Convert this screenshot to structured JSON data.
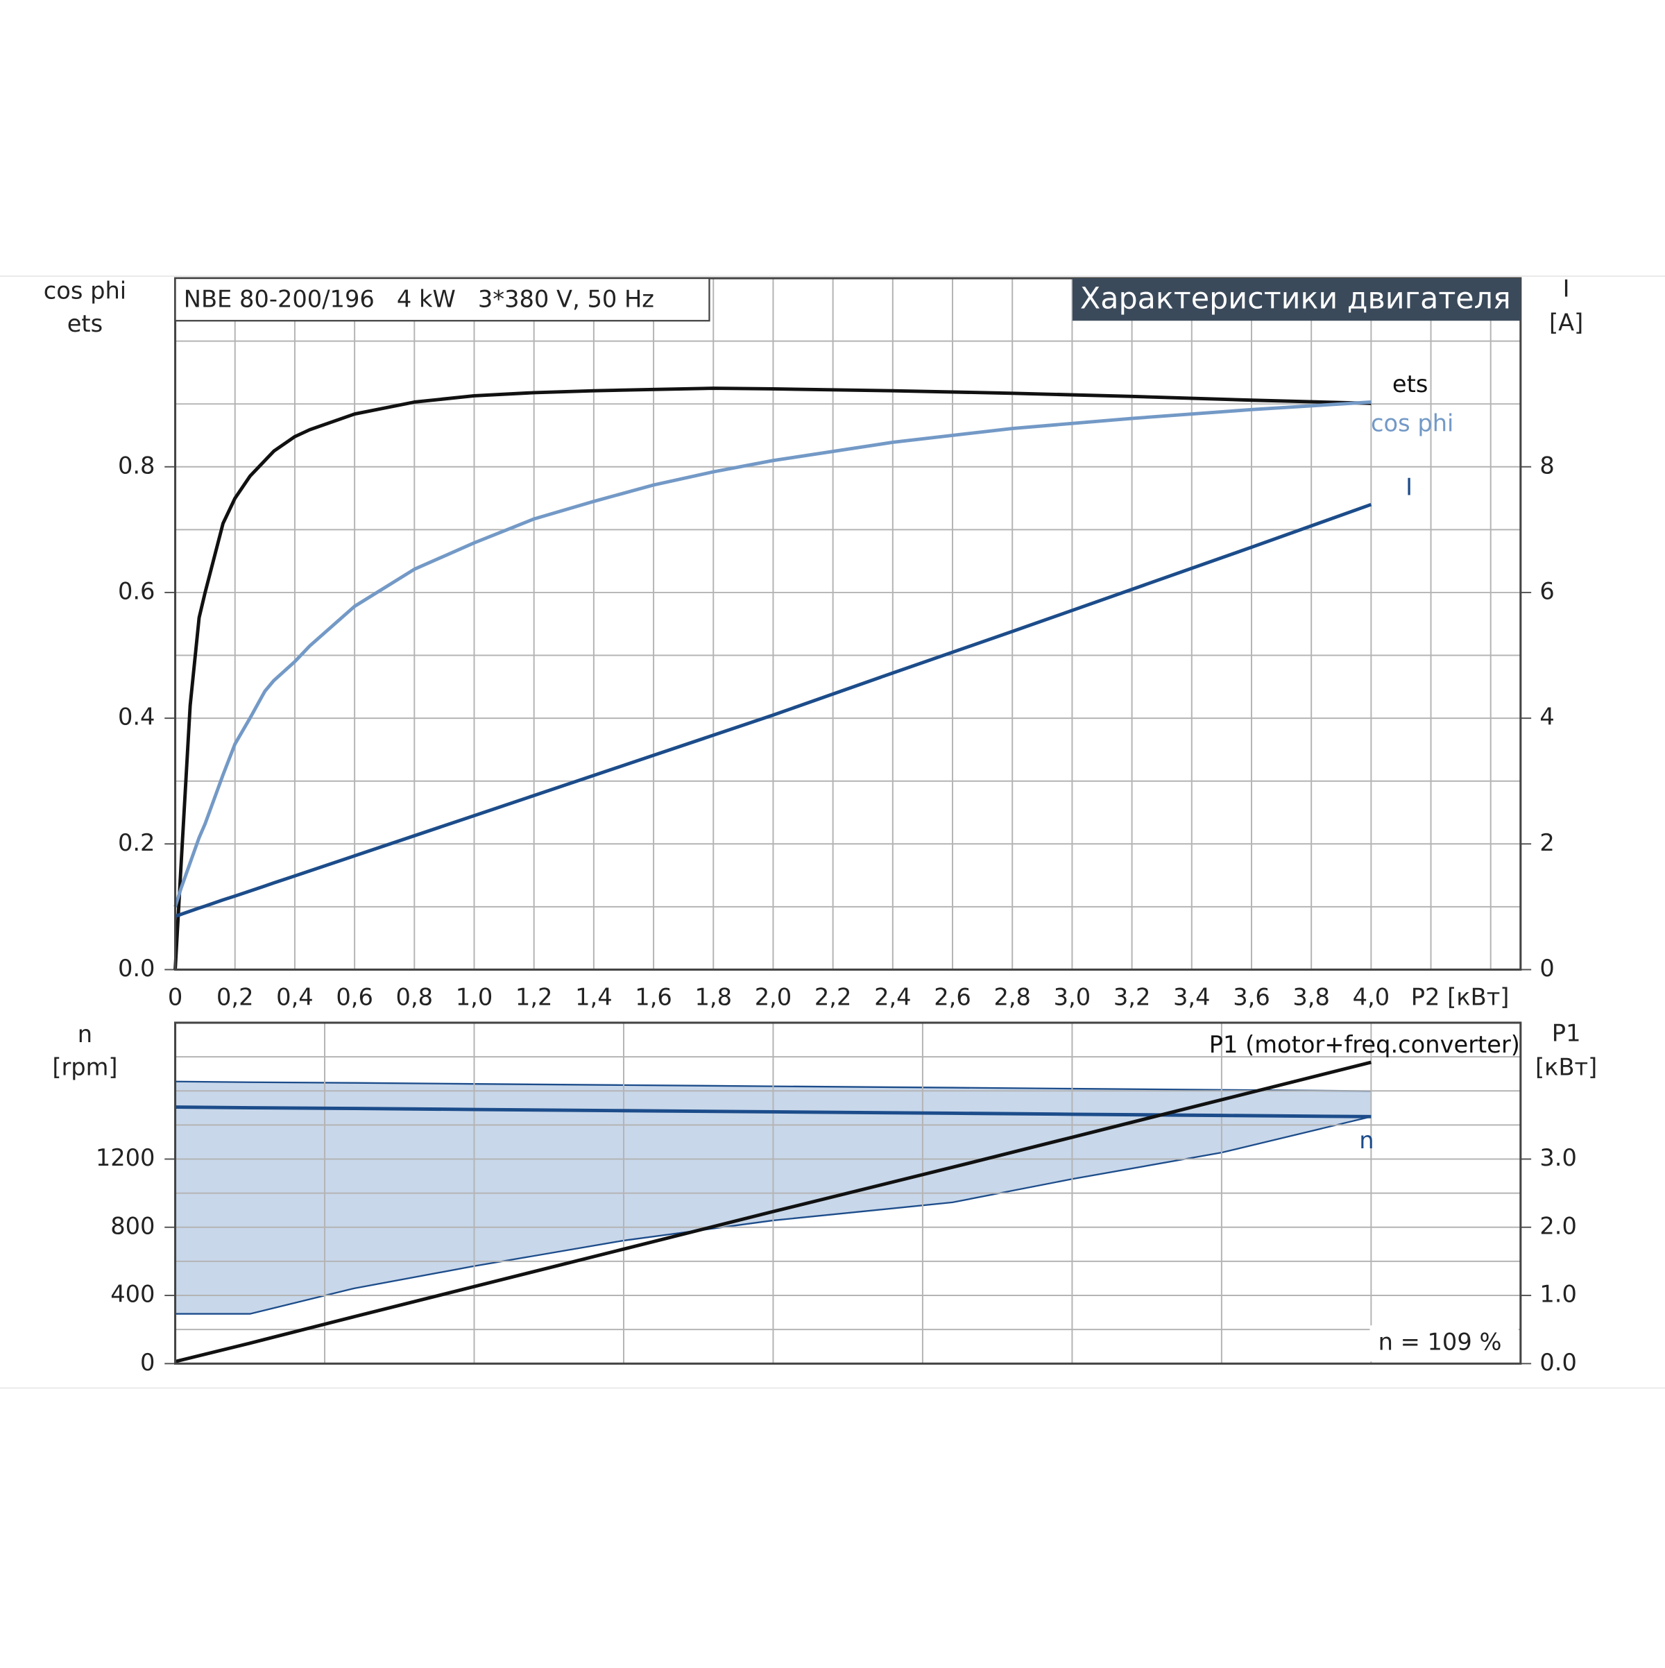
{
  "chart_data": [
    {
      "type": "line",
      "info": "NBE 80-200/196   4 kW   3*380 V, 50 Hz",
      "title": "Характеристики двигателя",
      "ylabel": [
        "cos phi",
        "ets"
      ],
      "y2label": [
        "I",
        "[A]"
      ],
      "xlabel": "P2 [кВт]",
      "xlim": [
        0,
        4.5
      ],
      "xticks": [
        0,
        {
          "value": 0.2,
          "label": "0,2"
        },
        {
          "value": 0.4,
          "label": "0,4"
        },
        {
          "value": 0.6,
          "label": "0,6"
        },
        {
          "value": 0.8,
          "label": "0,8"
        },
        {
          "value": 1.0,
          "label": "1,0"
        },
        {
          "value": 1.2,
          "label": "1,2"
        },
        {
          "value": 1.4,
          "label": "1,4"
        },
        {
          "value": 1.6,
          "label": "1,6"
        },
        {
          "value": 1.8,
          "label": "1,8"
        },
        {
          "value": 2.0,
          "label": "2,0"
        },
        {
          "value": 2.2,
          "label": "2,2"
        },
        {
          "value": 2.4,
          "label": "2,4"
        },
        {
          "value": 2.6,
          "label": "2,6"
        },
        {
          "value": 2.8,
          "label": "2,8"
        },
        {
          "value": 3.0,
          "label": "3,0"
        },
        {
          "value": 3.2,
          "label": "3,2"
        },
        {
          "value": 3.4,
          "label": "3,4"
        },
        {
          "value": 3.6,
          "label": "3,6"
        },
        {
          "value": 3.8,
          "label": "3,8"
        },
        {
          "value": 4.0,
          "label": "4,0"
        }
      ],
      "xgrid": [
        4.2,
        4.4
      ],
      "ylim": [
        0,
        1.1
      ],
      "yticks": [
        {
          "value": 0,
          "label": "0.0"
        },
        0.2,
        0.4,
        0.6,
        0.8
      ],
      "ygrid": [
        0.1,
        0.3,
        0.5,
        0.7,
        0.9,
        1.0
      ],
      "y2lim": [
        0,
        11
      ],
      "y2ticks": [
        0,
        2,
        4,
        6,
        8
      ],
      "grid": true,
      "x": [
        0,
        0.02,
        0.05,
        0.08,
        0.1,
        0.16,
        0.2,
        0.25,
        0.3,
        0.33,
        0.4,
        0.45,
        0.6,
        0.8,
        1.0,
        1.2,
        1.4,
        1.6,
        1.8,
        2.0,
        2.4,
        2.8,
        3.2,
        3.6,
        4.0
      ],
      "series": [
        {
          "name": "ets",
          "color": "#111111",
          "values": [
            0,
            0.17,
            0.42,
            0.56,
            0.6,
            0.71,
            0.75,
            0.785,
            0.81,
            0.825,
            0.848,
            0.859,
            0.884,
            0.903,
            0.913,
            0.918,
            0.921,
            0.923,
            0.925,
            0.924,
            0.921,
            0.917,
            0.912,
            0.906,
            0.901
          ]
        },
        {
          "name": "cos phi",
          "color": "#7399c6",
          "values": [
            0.1,
            0.13,
            0.17,
            0.21,
            0.232,
            0.31,
            0.359,
            0.4,
            0.443,
            0.46,
            0.49,
            0.515,
            0.578,
            0.637,
            0.679,
            0.717,
            0.745,
            0.771,
            0.792,
            0.81,
            0.839,
            0.861,
            0.877,
            0.891,
            0.903
          ]
        },
        {
          "name": "I",
          "color": "#1c4c8a",
          "axis": "y2",
          "values": [
            0.85,
            0.88,
            0.93,
            0.98,
            1.01,
            1.11,
            1.17,
            1.25,
            1.33,
            1.38,
            1.49,
            1.57,
            1.81,
            2.13,
            2.45,
            2.77,
            3.09,
            3.41,
            3.73,
            4.05,
            4.72,
            5.38,
            6.05,
            6.72,
            7.4
          ]
        }
      ]
    },
    {
      "type": "line",
      "ylabel": [
        "n",
        "[rpm]"
      ],
      "y2label": [
        "P1",
        "[кВт]"
      ],
      "annotation": "n = 109 %",
      "xlim": [
        0,
        4.5
      ],
      "xgrid": [
        0.5,
        1.0,
        1.5,
        2.0,
        2.5,
        3.0,
        3.5,
        4.0
      ],
      "ylim": [
        0,
        2000
      ],
      "yticks": [
        0,
        400,
        800,
        1200
      ],
      "ygrid": [
        200,
        600,
        1000,
        1400,
        1600,
        1800
      ],
      "y2lim": [
        0,
        5
      ],
      "y2ticks": [
        {
          "value": 0,
          "label": "0.0"
        },
        {
          "value": 1,
          "label": "1.0"
        },
        {
          "value": 2,
          "label": "2.0"
        },
        {
          "value": 3,
          "label": "3.0"
        }
      ],
      "grid": true,
      "x": [
        0,
        0.25,
        0.6,
        1.0,
        1.5,
        2.0,
        2.6,
        3.0,
        3.5,
        4.0
      ],
      "band": {
        "color": "#c8d7ea",
        "edge": "#1c4c8a",
        "upper": [
          1655,
          1651,
          1647,
          1641,
          1634,
          1627,
          1619,
          1613,
          1606,
          1599
        ],
        "lower": [
          292,
          292,
          442,
          572,
          722,
          840,
          946,
          1083,
          1238,
          1449
        ]
      },
      "series": [
        {
          "name": "n",
          "color": "#1c4c8a",
          "values": [
            1505,
            1501,
            1497,
            1491,
            1484,
            1477,
            1469,
            1463,
            1456,
            1449
          ]
        },
        {
          "name": "P1 (motor+freq.converter)",
          "color": "#111111",
          "axis": "y2",
          "values": [
            0.03,
            0.3,
            0.69,
            1.13,
            1.68,
            2.23,
            2.88,
            3.32,
            3.87,
            4.42
          ]
        }
      ]
    }
  ]
}
